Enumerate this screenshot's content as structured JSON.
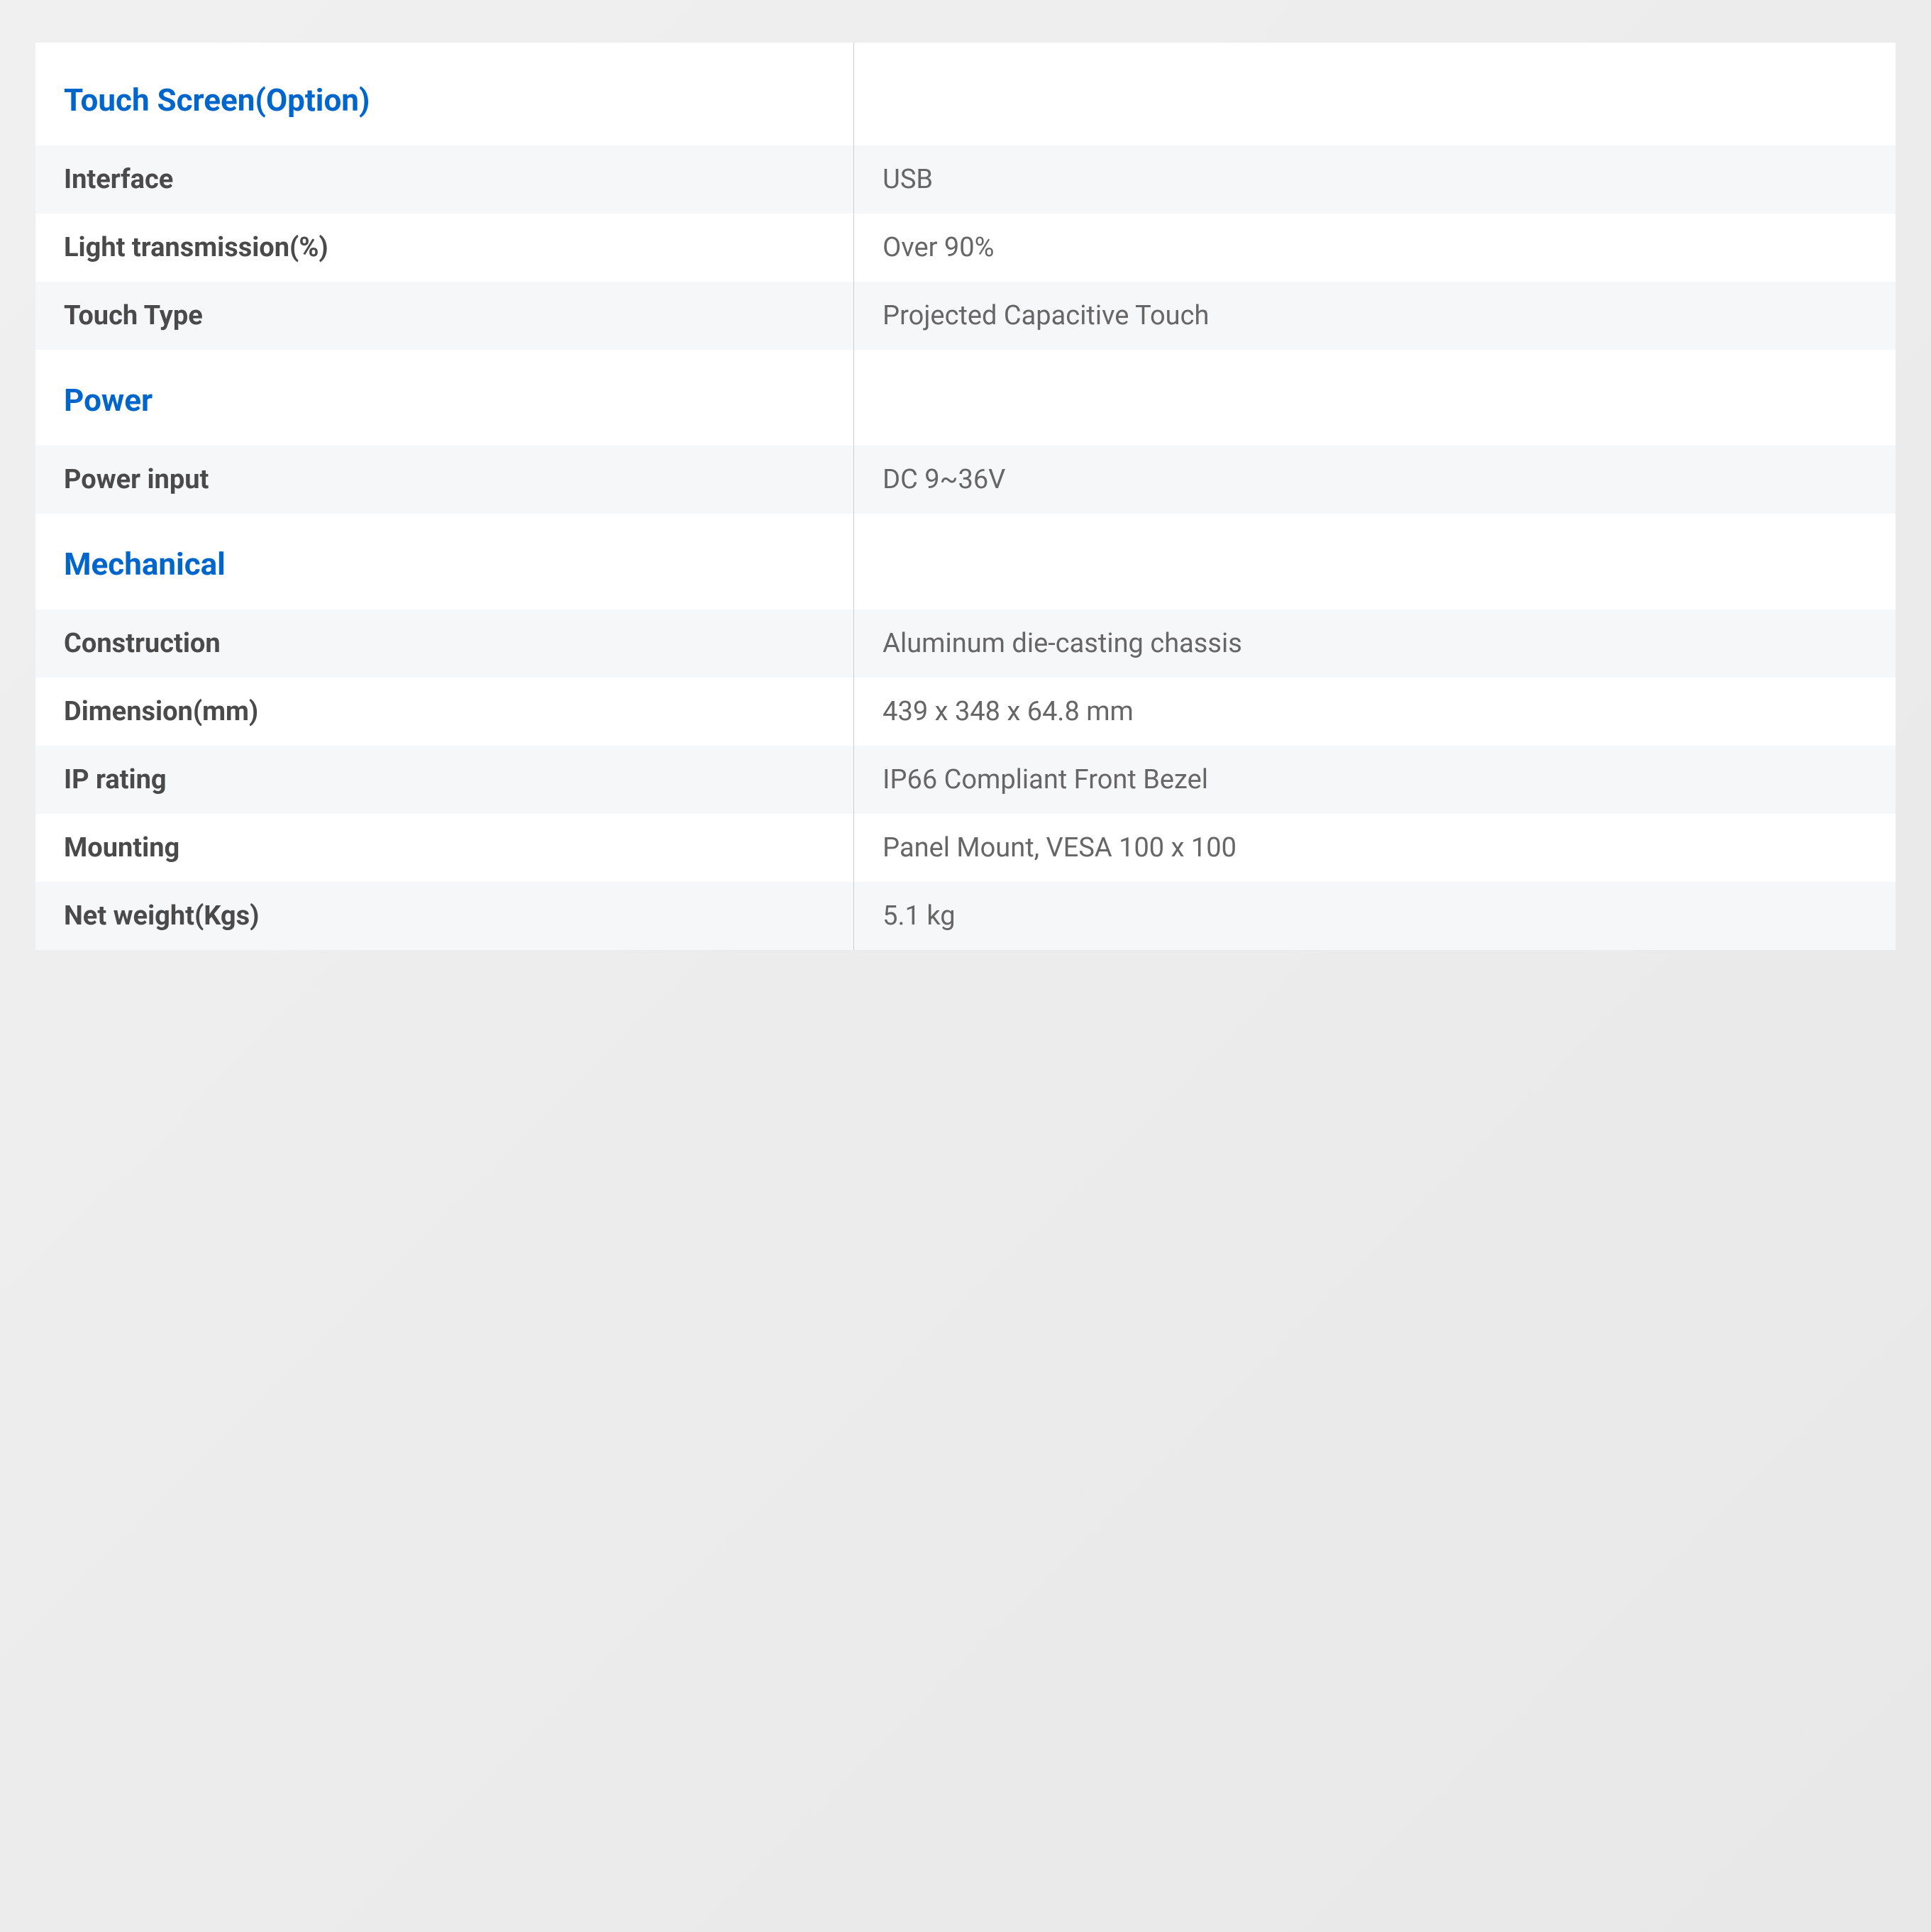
{
  "colors": {
    "header_text": "#0066cc",
    "label_text": "#4a4a4a",
    "value_text": "#666666",
    "row_bg_even": "#f6f7f8",
    "row_bg_odd": "#ffffff",
    "border": "#cccccc",
    "page_bg": "#f0f0f0"
  },
  "sections": [
    {
      "title": "Touch Screen(Option)",
      "rows": [
        {
          "label": "Interface",
          "value": "USB"
        },
        {
          "label": "Light transmission(%)",
          "value": "Over 90%"
        },
        {
          "label": "Touch Type",
          "value": "Projected Capacitive Touch"
        }
      ]
    },
    {
      "title": "Power",
      "rows": [
        {
          "label": "Power input",
          "value": "DC 9~36V"
        }
      ]
    },
    {
      "title": "Mechanical",
      "rows": [
        {
          "label": "Construction",
          "value": "Aluminum die-casting chassis"
        },
        {
          "label": "Dimension(mm)",
          "value": "439 x 348 x 64.8 mm"
        },
        {
          "label": "IP rating",
          "value": "IP66 Compliant Front Bezel"
        },
        {
          "label": "Mounting",
          "value": "Panel Mount, VESA 100 x 100"
        },
        {
          "label": "Net weight(Kgs)",
          "value": "5.1 kg"
        }
      ]
    }
  ]
}
